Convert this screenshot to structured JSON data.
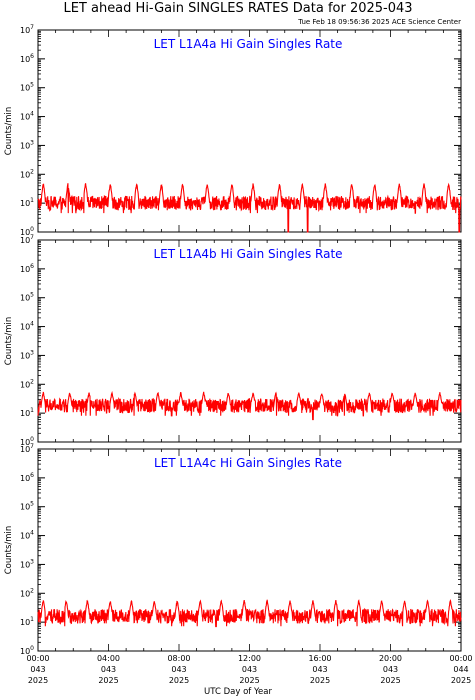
{
  "page": {
    "title": "LET ahead Hi-Gain SINGLES RATES Data for 2025-043",
    "timestamp": "Tue Feb 18 09:56:36 2025 ACE Science Center"
  },
  "colors": {
    "series": "#ff0000",
    "panel_title": "#0000ff",
    "axes": "#000000"
  },
  "chart_data": [
    {
      "type": "line",
      "title": "LET L1A4a Hi Gain Singles Rate",
      "ylabel": "Counts/min",
      "xlabel": "",
      "yscale": "log",
      "ylim": [
        1,
        10000000
      ],
      "xlim": [
        0,
        24
      ],
      "y_ticks": [
        {
          "base": "10",
          "exp": "0"
        },
        {
          "base": "10",
          "exp": "1"
        },
        {
          "base": "10",
          "exp": "2"
        },
        {
          "base": "10",
          "exp": "3"
        },
        {
          "base": "10",
          "exp": "4"
        },
        {
          "base": "10",
          "exp": "5"
        },
        {
          "base": "10",
          "exp": "6"
        },
        {
          "base": "10",
          "exp": "7"
        }
      ],
      "series": [
        {
          "baseline": 10,
          "spike_peak": 50,
          "spike_times_hours": [
            0.3,
            1.7,
            2.7,
            4.1,
            5.6,
            7.0,
            8.2,
            9.6,
            11.0,
            12.2,
            13.7,
            15.0,
            16.3,
            17.8,
            19.1,
            20.5,
            21.9,
            23.3
          ],
          "dip_min": 1,
          "dip_times_hours": [
            14.2,
            15.3,
            23.9
          ]
        }
      ]
    },
    {
      "type": "line",
      "title": "LET L1A4b Hi Gain Singles Rate",
      "ylabel": "Counts/min",
      "xlabel": "",
      "yscale": "log",
      "ylim": [
        1,
        10000000
      ],
      "xlim": [
        0,
        24
      ],
      "y_ticks": [
        {
          "base": "10",
          "exp": "0"
        },
        {
          "base": "10",
          "exp": "1"
        },
        {
          "base": "10",
          "exp": "2"
        },
        {
          "base": "10",
          "exp": "3"
        },
        {
          "base": "10",
          "exp": "4"
        },
        {
          "base": "10",
          "exp": "5"
        },
        {
          "base": "10",
          "exp": "6"
        },
        {
          "base": "10",
          "exp": "7"
        }
      ],
      "series": [
        {
          "baseline": 18,
          "spike_peak": 55,
          "spike_times_hours": [
            0.3,
            1.8,
            2.9,
            4.2,
            5.5,
            6.8,
            8.1,
            9.4,
            10.8,
            12.2,
            13.5,
            14.8,
            16.1,
            17.4,
            18.8,
            20.1,
            21.4,
            22.8
          ],
          "dip_min": 6,
          "dip_times_hours": [
            15.6
          ]
        }
      ]
    },
    {
      "type": "line",
      "title": "LET L1A4c Hi Gain Singles Rate",
      "ylabel": "Counts/min",
      "xlabel": "UTC Day of Year",
      "yscale": "log",
      "ylim": [
        1,
        10000000
      ],
      "xlim": [
        0,
        24
      ],
      "y_ticks": [
        {
          "base": "10",
          "exp": "0"
        },
        {
          "base": "10",
          "exp": "1"
        },
        {
          "base": "10",
          "exp": "2"
        },
        {
          "base": "10",
          "exp": "3"
        },
        {
          "base": "10",
          "exp": "4"
        },
        {
          "base": "10",
          "exp": "5"
        },
        {
          "base": "10",
          "exp": "6"
        },
        {
          "base": "10",
          "exp": "7"
        }
      ],
      "x_ticks": [
        {
          "hour": 0,
          "time": "00:00",
          "day": "043",
          "year": "2025"
        },
        {
          "hour": 4,
          "time": "04:00",
          "day": "043",
          "year": "2025"
        },
        {
          "hour": 8,
          "time": "08:00",
          "day": "043",
          "year": "2025"
        },
        {
          "hour": 12,
          "time": "12:00",
          "day": "043",
          "year": "2025"
        },
        {
          "hour": 16,
          "time": "16:00",
          "day": "043",
          "year": "2025"
        },
        {
          "hour": 20,
          "time": "20:00",
          "day": "043",
          "year": "2025"
        },
        {
          "hour": 24,
          "time": "00:00",
          "day": "044",
          "year": "2025"
        }
      ],
      "series": [
        {
          "baseline": 16,
          "spike_peak": 60,
          "spike_times_hours": [
            0.3,
            1.6,
            2.8,
            4.1,
            5.3,
            6.6,
            7.9,
            9.2,
            10.4,
            11.7,
            13.0,
            14.3,
            15.6,
            16.9,
            18.2,
            19.5,
            20.8,
            22.1,
            23.4
          ],
          "dip_min": 7,
          "dip_times_hours": [
            10.1
          ]
        }
      ]
    }
  ]
}
